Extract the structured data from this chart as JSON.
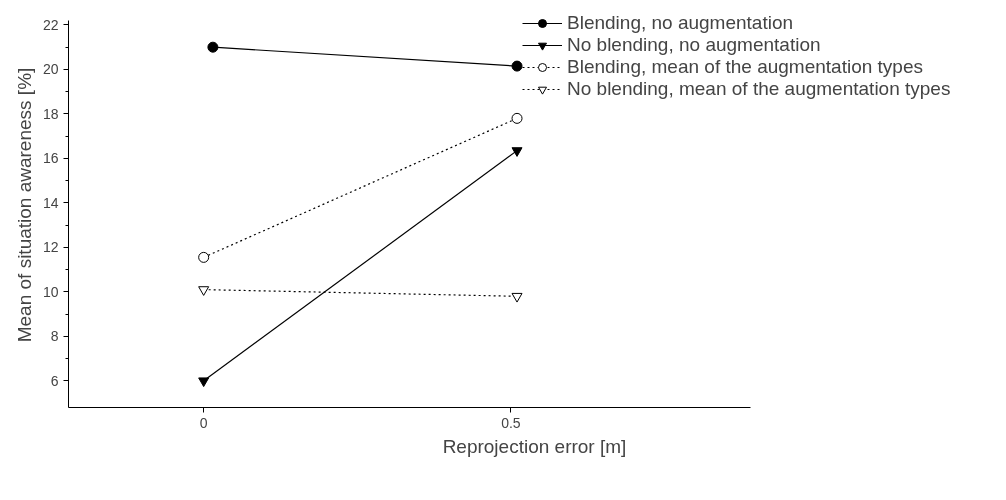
{
  "chart_data": {
    "type": "line",
    "xlabel": "Reprojection error [m]",
    "ylabel": "Mean of situation awareness [%]",
    "xlim": [
      -0.22,
      0.89
    ],
    "ylim": [
      4.8,
      22.2
    ],
    "xticks": [
      0,
      0.5
    ],
    "yticks": [
      6,
      8,
      10,
      12,
      14,
      16,
      18,
      20,
      22
    ],
    "grid": false,
    "legend": "top right",
    "series": [
      {
        "name": "Blending, no augmentation",
        "color": "#000000",
        "x": [
          0.015,
          0.51
        ],
        "values": [
          21.0,
          20.15
        ],
        "marker": "circle",
        "line_style": "solid"
      },
      {
        "name": "No blending, no augmentation",
        "color": "#000000",
        "x": [
          0.0,
          0.51
        ],
        "values": [
          6.0,
          16.35
        ],
        "marker": "triangle",
        "line_style": "solid"
      },
      {
        "name": "Blending, mean of the augmentation types",
        "color": "#000000",
        "x": [
          0.0,
          0.51
        ],
        "values": [
          11.55,
          17.8
        ],
        "marker": "circle_open",
        "line_style": "dotted"
      },
      {
        "name": "No blending, mean of the augmentation types",
        "color": "#000000",
        "x": [
          0.0,
          0.51
        ],
        "values": [
          10.1,
          9.8
        ],
        "marker": "triangle_open",
        "line_style": "dotted"
      }
    ]
  }
}
